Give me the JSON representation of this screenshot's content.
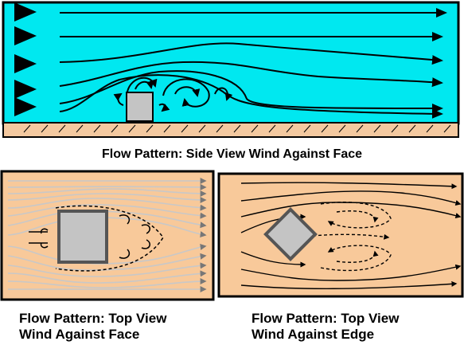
{
  "captions": {
    "side": "Flow Pattern: Side View Wind Against Face",
    "top_face_line1": "Flow Pattern: Top View",
    "top_face_line2": "Wind Against Face",
    "top_edge_line1": "Flow Pattern: Top View",
    "top_edge_line2": "Wind Against Edge"
  },
  "colors": {
    "sky": "#00e8f0",
    "ground": "#f4c9a0",
    "top_background": "#f8c99a",
    "building_fill": "#c4c4c4",
    "stream_dark": "#000000",
    "stream_light": "#c8c8c8"
  }
}
